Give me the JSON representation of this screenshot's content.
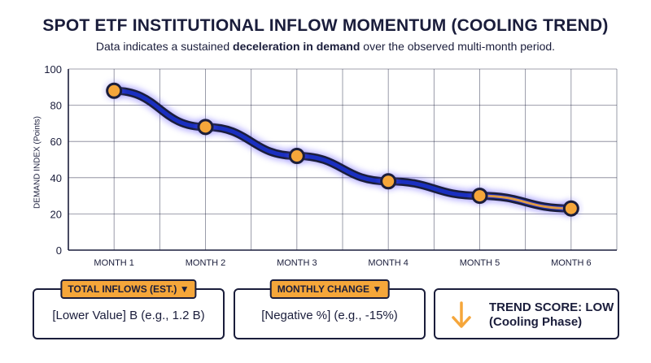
{
  "header": {
    "title": "SPOT ETF INSTITUTIONAL INFLOW MOMENTUM (COOLING TREND)",
    "subtitle_pre": "Data indicates a sustained ",
    "subtitle_bold": "deceleration in demand",
    "subtitle_post": " over the observed multi-month period."
  },
  "chart_data": {
    "type": "line",
    "title": "SPOT ETF INSTITUTIONAL INFLOW MOMENTUM (COOLING TREND)",
    "xlabel": "",
    "ylabel": "DEMAND INDEX (Points)",
    "categories": [
      "MONTH 1",
      "MONTH 2",
      "MONTH 3",
      "MONTH 4",
      "MONTH 5",
      "MONTH 6"
    ],
    "values": [
      88,
      68,
      52,
      38,
      30,
      23
    ],
    "ylim": [
      0,
      100
    ],
    "yticks": [
      0,
      20,
      40,
      60,
      80,
      100
    ],
    "grid": true,
    "colors": {
      "line": "#1a2fc0",
      "glow": "#6f63ff",
      "marker": "#f5a63a",
      "outline": "#1a1d3b"
    }
  },
  "cards": {
    "inflows": {
      "badge": "TOTAL INFLOWS (EST.) ▼",
      "value_main": "[Lower Value] B",
      "value_example": " (e.g., 1.2 B)"
    },
    "change": {
      "badge": "MONTHLY CHANGE ▼",
      "value_main": "[Negative %]",
      "value_example": " (e.g., -15%)"
    },
    "trend": {
      "icon": "arrow-down-icon",
      "line1": "TREND SCORE: LOW",
      "line2": "(Cooling Phase)",
      "icon_color": "#f5a63a"
    }
  }
}
